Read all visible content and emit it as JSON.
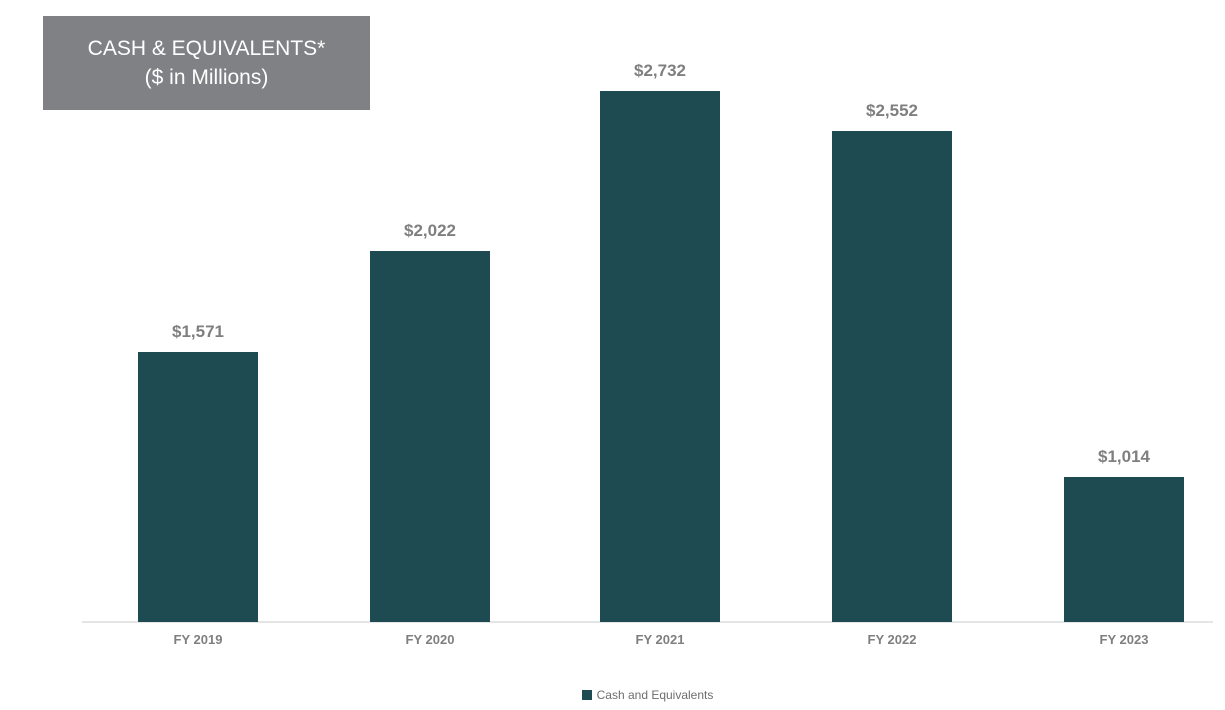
{
  "title_box": {
    "line1": "CASH & EQUIVALENTS*",
    "line2": "($ in Millions)"
  },
  "legend": {
    "label": "Cash and Equivalents"
  },
  "colors": {
    "bar": "#1e4a52",
    "title_box_bg": "#7f8184",
    "title_text": "#ffffff",
    "data_label": "#7f7f7f",
    "category_label": "#7f7f7f",
    "legend_text": "#6e6e6e",
    "axis_line": "#e5e5e5"
  },
  "chart_data": {
    "type": "bar",
    "title": "CASH & EQUIVALENTS* ($ in Millions)",
    "categories": [
      "FY 2019",
      "FY 2020",
      "FY 2021",
      "FY 2022",
      "FY 2023"
    ],
    "series": [
      {
        "name": "Cash and Equivalents",
        "values": [
          1571,
          2022,
          2732,
          2552,
          1014
        ]
      }
    ],
    "data_labels": [
      "$1,571",
      "$2,022",
      "$2,732",
      "$2,552",
      "$1,014"
    ],
    "xlabel": "",
    "ylabel": "",
    "ylim": [
      370,
      2830
    ],
    "y_axis_visible": false,
    "grid": false,
    "legend_position": "bottom"
  }
}
